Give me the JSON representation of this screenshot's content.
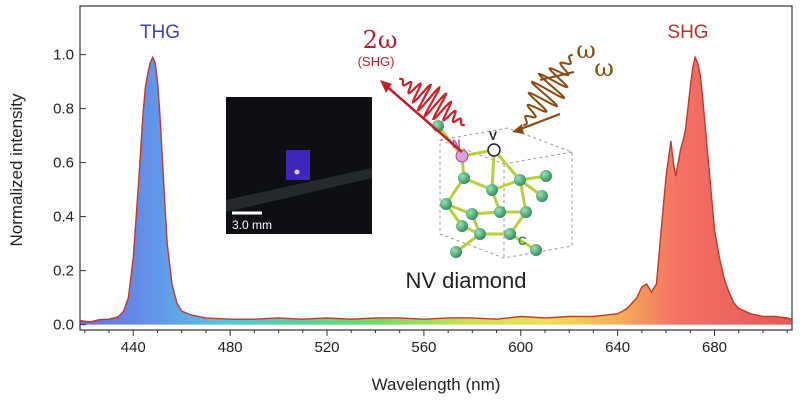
{
  "chart_data": {
    "type": "area",
    "xlabel": "Wavelength (nm)",
    "ylabel": "Normalized intensity",
    "xlim": [
      418,
      712
    ],
    "ylim": [
      -0.02,
      1.18
    ],
    "x_ticks": [
      440,
      480,
      520,
      560,
      600,
      640,
      680
    ],
    "x_tick_labels": [
      "440",
      "480",
      "520",
      "560",
      "600",
      "640",
      "680"
    ],
    "y_ticks": [
      0.0,
      0.2,
      0.4,
      0.6,
      0.8,
      1.0
    ],
    "y_tick_labels": [
      "0.0",
      "0.2",
      "0.4",
      "0.6",
      "0.8",
      "1.0"
    ],
    "fill": "spectrum-gradient",
    "line_color": "#c0392b",
    "series": [
      {
        "x": [
          418,
          422,
          426,
          430,
          434,
          436,
          438,
          440,
          442,
          444,
          445,
          446,
          447,
          448,
          449,
          450,
          451,
          452,
          453,
          454,
          456,
          458,
          460,
          464,
          470,
          480,
          490,
          500,
          510,
          520,
          530,
          540,
          550,
          560,
          570,
          580,
          590,
          600,
          610,
          620,
          630,
          635,
          640,
          644,
          648,
          650,
          652,
          654,
          656,
          658,
          660,
          662,
          663,
          664,
          665,
          666,
          667,
          668,
          669,
          670,
          671,
          672,
          673,
          674,
          675,
          676,
          677,
          678,
          679,
          680,
          682,
          684,
          686,
          688,
          690,
          695,
          700,
          705,
          710,
          712
        ],
        "y": [
          0.015,
          0.01,
          0.018,
          0.02,
          0.03,
          0.05,
          0.1,
          0.25,
          0.5,
          0.78,
          0.88,
          0.93,
          0.97,
          0.99,
          0.97,
          0.9,
          0.78,
          0.62,
          0.45,
          0.3,
          0.15,
          0.08,
          0.05,
          0.035,
          0.025,
          0.02,
          0.02,
          0.025,
          0.02,
          0.025,
          0.02,
          0.025,
          0.025,
          0.02,
          0.025,
          0.025,
          0.02,
          0.03,
          0.025,
          0.03,
          0.03,
          0.035,
          0.04,
          0.06,
          0.1,
          0.14,
          0.15,
          0.12,
          0.15,
          0.35,
          0.55,
          0.68,
          0.6,
          0.55,
          0.6,
          0.65,
          0.68,
          0.72,
          0.8,
          0.88,
          0.95,
          0.99,
          0.97,
          0.93,
          0.85,
          0.75,
          0.65,
          0.55,
          0.45,
          0.35,
          0.25,
          0.17,
          0.12,
          0.08,
          0.06,
          0.04,
          0.03,
          0.03,
          0.025,
          0.02
        ]
      }
    ],
    "annotations": {
      "thg": {
        "text": "THG",
        "color": "#3b3fc8"
      },
      "shg": {
        "text": "SHG",
        "color": "#c0302a"
      },
      "two_omega": {
        "text": "2ω",
        "color": "#b8202a"
      },
      "shg_paren": {
        "text": "(SHG)",
        "color": "#b8202a"
      },
      "omega_1": {
        "text": "ω",
        "color": "#8a4a10"
      },
      "omega_2": {
        "text": "ω",
        "color": "#8a4a10"
      },
      "inset_title": "NV diamond",
      "atom_n": {
        "text": "N",
        "color": "#c050c0"
      },
      "atom_v": {
        "text": "V",
        "color": "#222222"
      },
      "atom_c": {
        "text": "C",
        "color": "#2e8b57"
      },
      "scale_bar": "3.0 mm"
    }
  }
}
